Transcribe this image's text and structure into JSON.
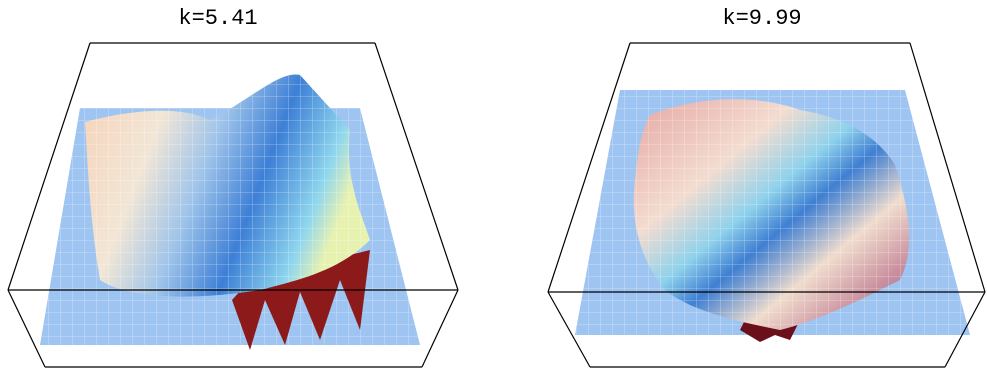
{
  "chart_data": [
    {
      "type": "surface",
      "title": "k=5.41"
    },
    {
      "type": "surface",
      "title": "k=9.99"
    }
  ]
}
